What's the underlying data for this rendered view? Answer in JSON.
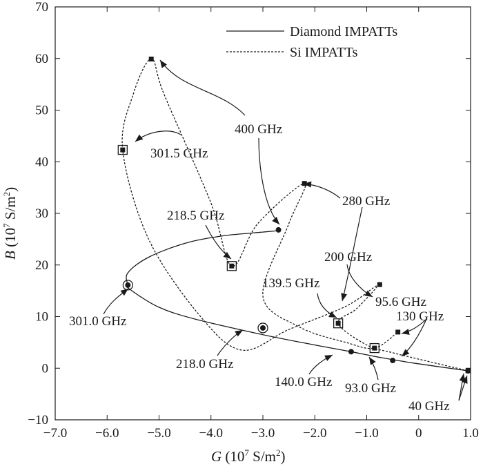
{
  "chart_data": {
    "type": "line",
    "xlabel": "G (10^7 S/m^2)",
    "xlabel_parts": {
      "var": "G",
      "unit_pre": "(10",
      "unit_exp": "7",
      "unit_mid": " S/m",
      "unit_exp2": "2",
      "unit_post": ")"
    },
    "ylabel_parts": {
      "var": "B",
      "unit_pre": "(10",
      "unit_exp": "7",
      "unit_mid": " S/m",
      "unit_exp2": "2",
      "unit_post": ")"
    },
    "xlim": [
      -7.0,
      1.0
    ],
    "ylim": [
      -10,
      70
    ],
    "x_ticks": [
      "−7.0",
      "−6.0",
      "−5.0",
      "−4.0",
      "−3.0",
      "−2.0",
      "−1.0",
      "0",
      "1.0"
    ],
    "x_tick_values": [
      -7,
      -6,
      -5,
      -4,
      -3,
      -2,
      -1,
      0,
      1
    ],
    "y_ticks": [
      "−10",
      "0",
      "10",
      "20",
      "30",
      "40",
      "50",
      "60",
      "70"
    ],
    "y_tick_values": [
      -10,
      0,
      10,
      20,
      30,
      40,
      50,
      60,
      70
    ],
    "legend_position": "top-right",
    "series": [
      {
        "name": "Diamond IMPATTs",
        "style": "solid",
        "points": [
          [
            0.95,
            -0.5
          ],
          [
            -0.1,
            1.0
          ],
          [
            -0.8,
            2.2
          ],
          [
            -1.3,
            3.2
          ],
          [
            -2.0,
            4.5
          ],
          [
            -3.0,
            6.5
          ],
          [
            -4.3,
            9.5
          ],
          [
            -5.0,
            11.8
          ],
          [
            -5.55,
            15.2
          ],
          [
            -5.6,
            16.1
          ],
          [
            -5.6,
            18.5
          ],
          [
            -5.2,
            21.5
          ],
          [
            -4.5,
            24.2
          ],
          [
            -3.8,
            25.6
          ],
          [
            -3.2,
            26.2
          ],
          [
            -2.75,
            26.6
          ]
        ],
        "point_markers": [
          {
            "x": 0.95,
            "y": -0.5,
            "label": "40 GHz"
          },
          {
            "x": -0.5,
            "y": 1.5,
            "label": "93.0 GHz"
          },
          {
            "x": -1.3,
            "y": 3.2,
            "label": "140.0 GHz"
          },
          {
            "x": -3.0,
            "y": 7.8,
            "label": "218.0 GHz"
          },
          {
            "x": -5.6,
            "y": 16.1,
            "label": "301.0 GHz"
          },
          {
            "x": -2.7,
            "y": 26.8,
            "label": "400 GHz"
          }
        ]
      },
      {
        "name": "Si IMPATTs",
        "style": "dashed",
        "points": [
          [
            0.95,
            -0.5
          ],
          [
            -0.1,
            2.0
          ],
          [
            -0.5,
            3.0
          ],
          [
            -1.0,
            4.5
          ],
          [
            -1.55,
            8.7
          ],
          [
            -1.2,
            11.5
          ],
          [
            -0.8,
            16.0
          ],
          [
            -1.4,
            12.0
          ],
          [
            -2.5,
            7.5
          ],
          [
            -3.4,
            3.5
          ],
          [
            -4.2,
            10.0
          ],
          [
            -5.2,
            25.0
          ],
          [
            -5.7,
            42.3
          ],
          [
            -5.5,
            53.0
          ],
          [
            -5.15,
            59.9
          ],
          [
            -4.9,
            53.0
          ],
          [
            -4.0,
            32.0
          ],
          [
            -3.6,
            19.8
          ],
          [
            -3.1,
            28.0
          ],
          [
            -2.2,
            35.8
          ],
          [
            -2.5,
            28.0
          ],
          [
            -3.0,
            14.0
          ],
          [
            -2.3,
            8.0
          ],
          [
            -1.4,
            5.0
          ],
          [
            -0.85,
            3.9
          ],
          [
            -0.4,
            7.0
          ]
        ],
        "point_markers": [
          {
            "x": 0.95,
            "y": -0.5,
            "label": "40 GHz"
          },
          {
            "x": -0.85,
            "y": 3.9,
            "label": "95.6 GHz"
          },
          {
            "x": -1.55,
            "y": 8.7,
            "label": "139.5 GHz"
          },
          {
            "x": -3.6,
            "y": 19.8,
            "label": "218.5 GHz"
          },
          {
            "x": -5.7,
            "y": 42.3,
            "label": "301.5 GHz"
          },
          {
            "x": -5.15,
            "y": 59.9,
            "label": "400 GHz"
          },
          {
            "x": -2.2,
            "y": 35.8,
            "label": "280 GHz"
          },
          {
            "x": -0.75,
            "y": 16.2,
            "label": "200 GHz"
          },
          {
            "x": -0.4,
            "y": 7.0,
            "label": "130 GHz"
          }
        ]
      }
    ],
    "annotations": [
      {
        "text": "400 GHz"
      },
      {
        "text": "301.5 GHz"
      },
      {
        "text": "280 GHz"
      },
      {
        "text": "218.5 GHz"
      },
      {
        "text": "200 GHz"
      },
      {
        "text": "139.5 GHz"
      },
      {
        "text": "95.6 GHz"
      },
      {
        "text": "130 GHz"
      },
      {
        "text": "301.0 GHz"
      },
      {
        "text": "218.0 GHz"
      },
      {
        "text": "140.0 GHz"
      },
      {
        "text": "93.0 GHz"
      },
      {
        "text": "40 GHz"
      }
    ]
  }
}
